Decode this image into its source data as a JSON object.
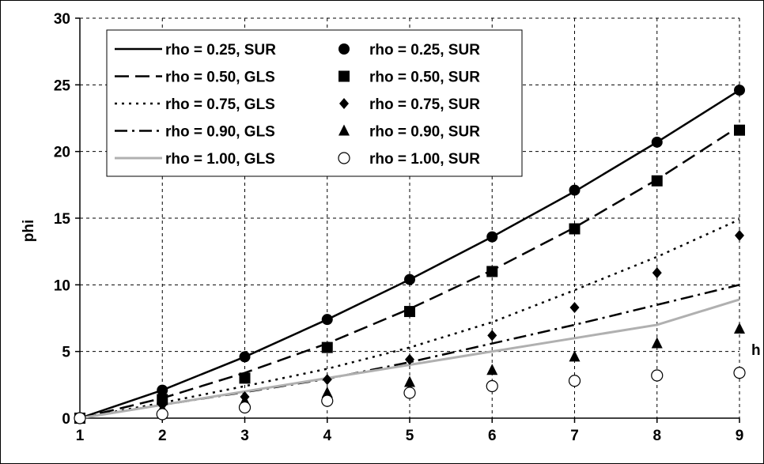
{
  "chart_data": {
    "type": "line",
    "title": "",
    "xlabel": "h",
    "ylabel": "phi",
    "xlim": [
      1,
      9
    ],
    "ylim": [
      0,
      30
    ],
    "x_ticks": [
      1,
      2,
      3,
      4,
      5,
      6,
      7,
      8,
      9
    ],
    "y_ticks": [
      0,
      5,
      10,
      15,
      20,
      25,
      30
    ],
    "grid": true,
    "legend_position": "top-left",
    "x": [
      1,
      2,
      3,
      4,
      5,
      6,
      7,
      8,
      9
    ],
    "series": [
      {
        "name": "rho = 0.25, SUR",
        "kind": "line",
        "style": "solid",
        "color": "#000000",
        "values": [
          0,
          2.1,
          4.6,
          7.4,
          10.4,
          13.6,
          17.0,
          20.7,
          24.6
        ]
      },
      {
        "name": "rho = 0.50, GLS",
        "kind": "line",
        "style": "long-dash",
        "color": "#000000",
        "values": [
          0,
          1.5,
          3.4,
          5.6,
          8.2,
          11.1,
          14.3,
          17.9,
          21.9
        ]
      },
      {
        "name": "rho = 0.75, GLS",
        "kind": "line",
        "style": "dotted",
        "color": "#000000",
        "values": [
          0,
          1.15,
          2.4,
          3.7,
          5.3,
          7.2,
          9.6,
          12.1,
          14.9
        ]
      },
      {
        "name": "rho = 0.90, GLS",
        "kind": "line",
        "style": "dash-dot",
        "color": "#000000",
        "values": [
          0,
          1.0,
          1.95,
          2.95,
          4.2,
          5.6,
          7.0,
          8.5,
          10.0
        ]
      },
      {
        "name": "rho = 1.00, GLS",
        "kind": "line",
        "style": "solid",
        "color": "#b0b0b0",
        "values": [
          0,
          1.0,
          2.0,
          3.0,
          4.0,
          5.0,
          6.0,
          7.0,
          8.9
        ]
      },
      {
        "name": "rho = 0.25, SUR",
        "kind": "marker",
        "marker": "circle-filled",
        "color": "#000000",
        "values": [
          0,
          2.1,
          4.6,
          7.4,
          10.4,
          13.6,
          17.1,
          20.7,
          24.6
        ]
      },
      {
        "name": "rho = 0.50, SUR",
        "kind": "marker",
        "marker": "square-filled",
        "color": "#000000",
        "values": [
          0,
          1.4,
          3.0,
          5.3,
          8.0,
          11.0,
          14.2,
          17.8,
          21.6
        ]
      },
      {
        "name": "rho = 0.75, SUR",
        "kind": "marker",
        "marker": "diamond-filled",
        "color": "#000000",
        "values": [
          0,
          1.0,
          1.6,
          2.9,
          4.4,
          6.2,
          8.3,
          10.9,
          13.7
        ]
      },
      {
        "name": "rho = 0.90, SUR",
        "kind": "marker",
        "marker": "triangle-filled",
        "color": "#000000",
        "values": [
          0,
          0.7,
          1.3,
          1.9,
          2.7,
          3.6,
          4.6,
          5.6,
          6.7
        ]
      },
      {
        "name": "rho = 1.00, SUR",
        "kind": "marker",
        "marker": "circle-open",
        "color": "#000000",
        "values": [
          0,
          0.3,
          0.8,
          1.3,
          1.9,
          2.4,
          2.8,
          3.2,
          3.4
        ]
      }
    ],
    "legend": {
      "left_column": [
        "rho = 0.25, SUR",
        "rho = 0.50, GLS",
        "rho = 0.75, GLS",
        "rho = 0.90, GLS",
        "rho = 1.00, GLS"
      ],
      "right_column": [
        "rho = 0.25, SUR",
        "rho = 0.50, SUR",
        "rho = 0.75, SUR",
        "rho = 0.90, SUR",
        "rho = 1.00, SUR"
      ]
    }
  }
}
